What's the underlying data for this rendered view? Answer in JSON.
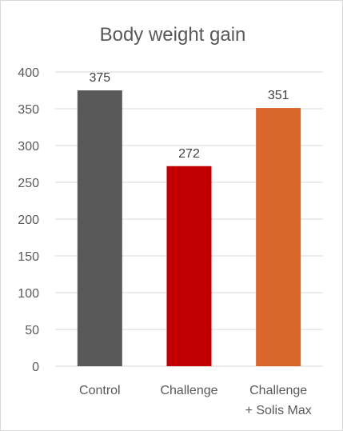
{
  "chart_data": {
    "type": "bar",
    "title": "Body weight gain",
    "categories": [
      [
        "Control"
      ],
      [
        "Challenge"
      ],
      [
        "Challenge",
        "+ Solis Max"
      ]
    ],
    "values": [
      375,
      272,
      351
    ],
    "data_labels": [
      "375",
      "272",
      "351"
    ],
    "colors": [
      "#595959",
      "#c00000",
      "#d9662a"
    ],
    "ylim": [
      0,
      400
    ],
    "yticks": [
      0,
      50,
      100,
      150,
      200,
      250,
      300,
      350,
      400
    ],
    "grid": true,
    "xlabel": "",
    "ylabel": ""
  }
}
